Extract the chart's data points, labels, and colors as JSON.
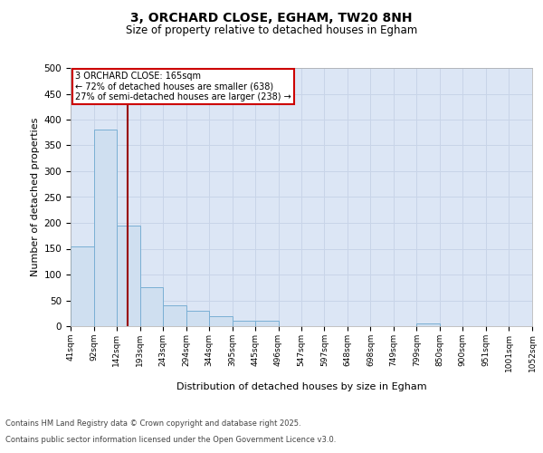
{
  "title_line1": "3, ORCHARD CLOSE, EGHAM, TW20 8NH",
  "title_line2": "Size of property relative to detached houses in Egham",
  "xlabel": "Distribution of detached houses by size in Egham",
  "ylabel": "Number of detached properties",
  "bar_color": "#cfdff0",
  "bar_edge_color": "#7aafd4",
  "grid_color": "#c8d4e8",
  "background_color": "#dce6f5",
  "vline_x": 165,
  "vline_color": "#990000",
  "annotation_text": "3 ORCHARD CLOSE: 165sqm\n← 72% of detached houses are smaller (638)\n27% of semi-detached houses are larger (238) →",
  "annotation_box_color": "#cc0000",
  "annotation_bg": "#ffffff",
  "footnote_line1": "Contains HM Land Registry data © Crown copyright and database right 2025.",
  "footnote_line2": "Contains public sector information licensed under the Open Government Licence v3.0.",
  "bins": [
    41,
    92,
    142,
    193,
    243,
    294,
    344,
    395,
    445,
    496,
    547,
    597,
    648,
    698,
    749,
    799,
    850,
    900,
    951,
    1001,
    1052
  ],
  "counts": [
    155,
    380,
    195,
    75,
    40,
    30,
    20,
    10,
    10,
    0,
    0,
    0,
    0,
    0,
    0,
    5,
    0,
    0,
    0,
    0
  ],
  "ylim": [
    0,
    500
  ],
  "yticks": [
    0,
    50,
    100,
    150,
    200,
    250,
    300,
    350,
    400,
    450,
    500
  ],
  "figsize": [
    6.0,
    5.0
  ],
  "dpi": 100
}
